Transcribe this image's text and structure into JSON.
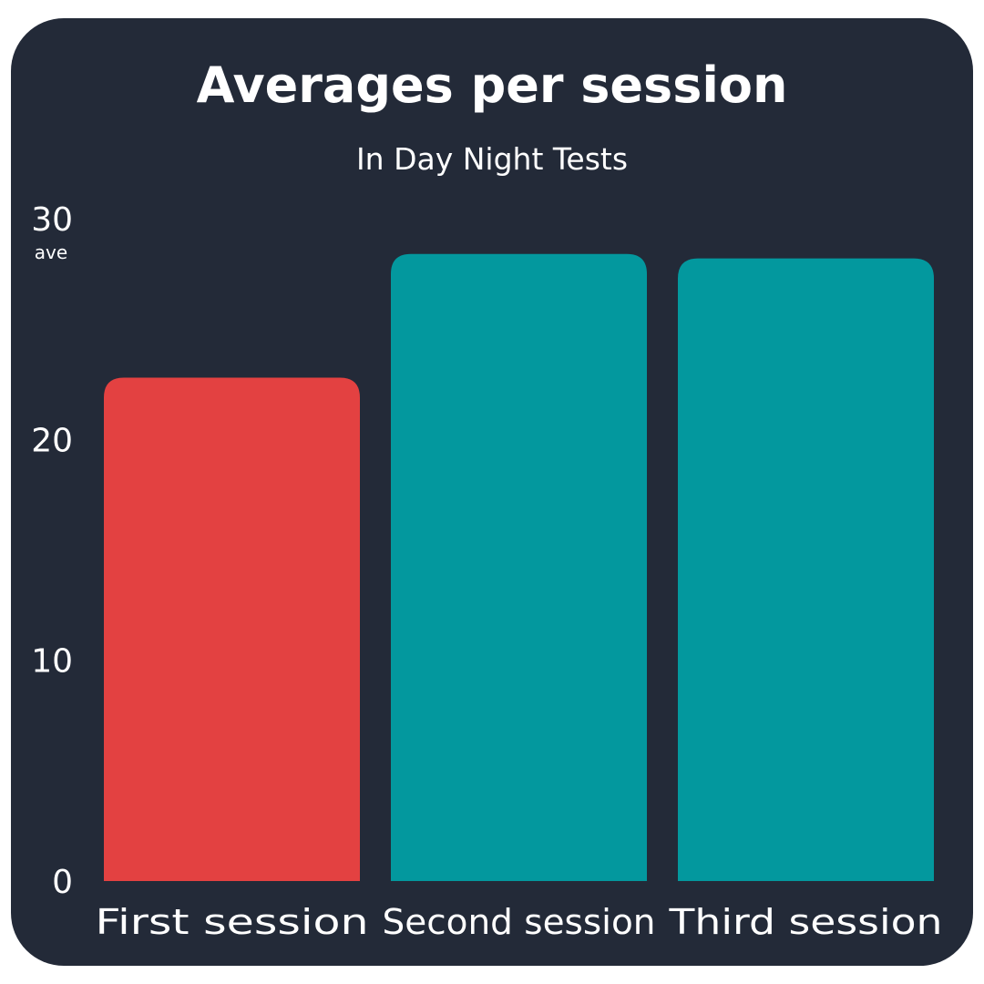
{
  "chart_data": {
    "type": "bar",
    "title": "Averages per session",
    "subtitle": "In Day Night Tests",
    "ylabel": "ave",
    "ylim": [
      0,
      30
    ],
    "yticks": [
      "0",
      "10",
      "20",
      "30"
    ],
    "categories": [
      "First session",
      "Second session",
      "Third session"
    ],
    "values": [
      22.8,
      28.4,
      28.2
    ],
    "colors": [
      "#e34141",
      "#03989e",
      "#03989e"
    ],
    "grid": false
  }
}
